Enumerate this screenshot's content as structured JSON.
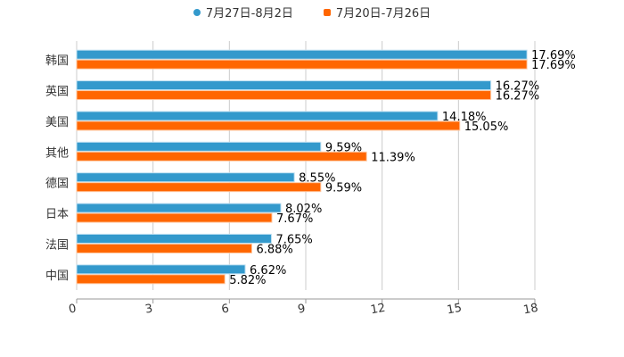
{
  "chart_data": {
    "type": "bar",
    "orientation": "horizontal",
    "categories": [
      "韩国",
      "英国",
      "美国",
      "其他",
      "德国",
      "日本",
      "法国",
      "中国"
    ],
    "series": [
      {
        "name": "7月27日-8月2日",
        "color": "#3399cc",
        "values": [
          17.69,
          16.27,
          14.18,
          9.59,
          8.55,
          8.02,
          7.65,
          6.62
        ],
        "labels": [
          "17.69%",
          "16.27%",
          "14.18%",
          "9.59%",
          "8.55%",
          "8.02%",
          "7.65%",
          "6.62%"
        ]
      },
      {
        "name": "7月20日-7月26日",
        "color": "#ff6600",
        "values": [
          17.69,
          16.27,
          15.05,
          11.39,
          9.59,
          7.67,
          6.88,
          5.82
        ],
        "labels": [
          "17.69%",
          "16.27%",
          "15.05%",
          "11.39%",
          "9.59%",
          "7.67%",
          "6.88%",
          "5.82%"
        ]
      }
    ],
    "xlim": [
      0,
      18
    ],
    "xticks": [
      "0",
      "3",
      "6",
      "9",
      "12",
      "15",
      "18"
    ],
    "grid": true,
    "legend_position": "top"
  }
}
